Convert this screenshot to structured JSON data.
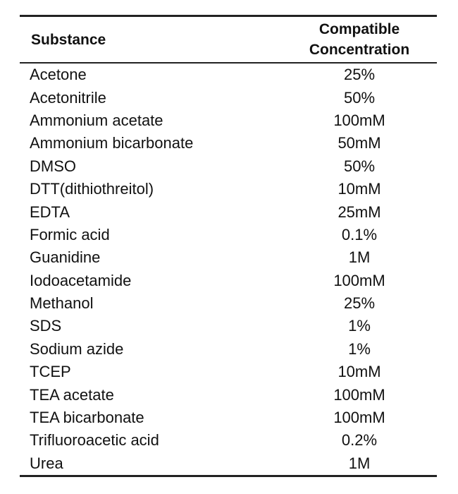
{
  "table": {
    "columns": [
      "Substance",
      "Compatible Concentration"
    ],
    "rows": [
      [
        "Acetone",
        "25%"
      ],
      [
        "Acetonitrile",
        "50%"
      ],
      [
        "Ammonium acetate",
        "100mM"
      ],
      [
        "Ammonium bicarbonate",
        "50mM"
      ],
      [
        "DMSO",
        "50%"
      ],
      [
        "DTT(dithiothreitol)",
        "10mM"
      ],
      [
        "EDTA",
        "25mM"
      ],
      [
        "Formic acid",
        "0.1%"
      ],
      [
        "Guanidine",
        "1M"
      ],
      [
        "Iodoacetamide",
        "100mM"
      ],
      [
        "Methanol",
        "25%"
      ],
      [
        "SDS",
        "1%"
      ],
      [
        "Sodium azide",
        "1%"
      ],
      [
        "TCEP",
        "10mM"
      ],
      [
        "TEA acetate",
        "100mM"
      ],
      [
        "TEA bicarbonate",
        "100mM"
      ],
      [
        "Trifluoroacetic acid",
        "0.2%"
      ],
      [
        "Urea",
        "1M"
      ]
    ]
  }
}
